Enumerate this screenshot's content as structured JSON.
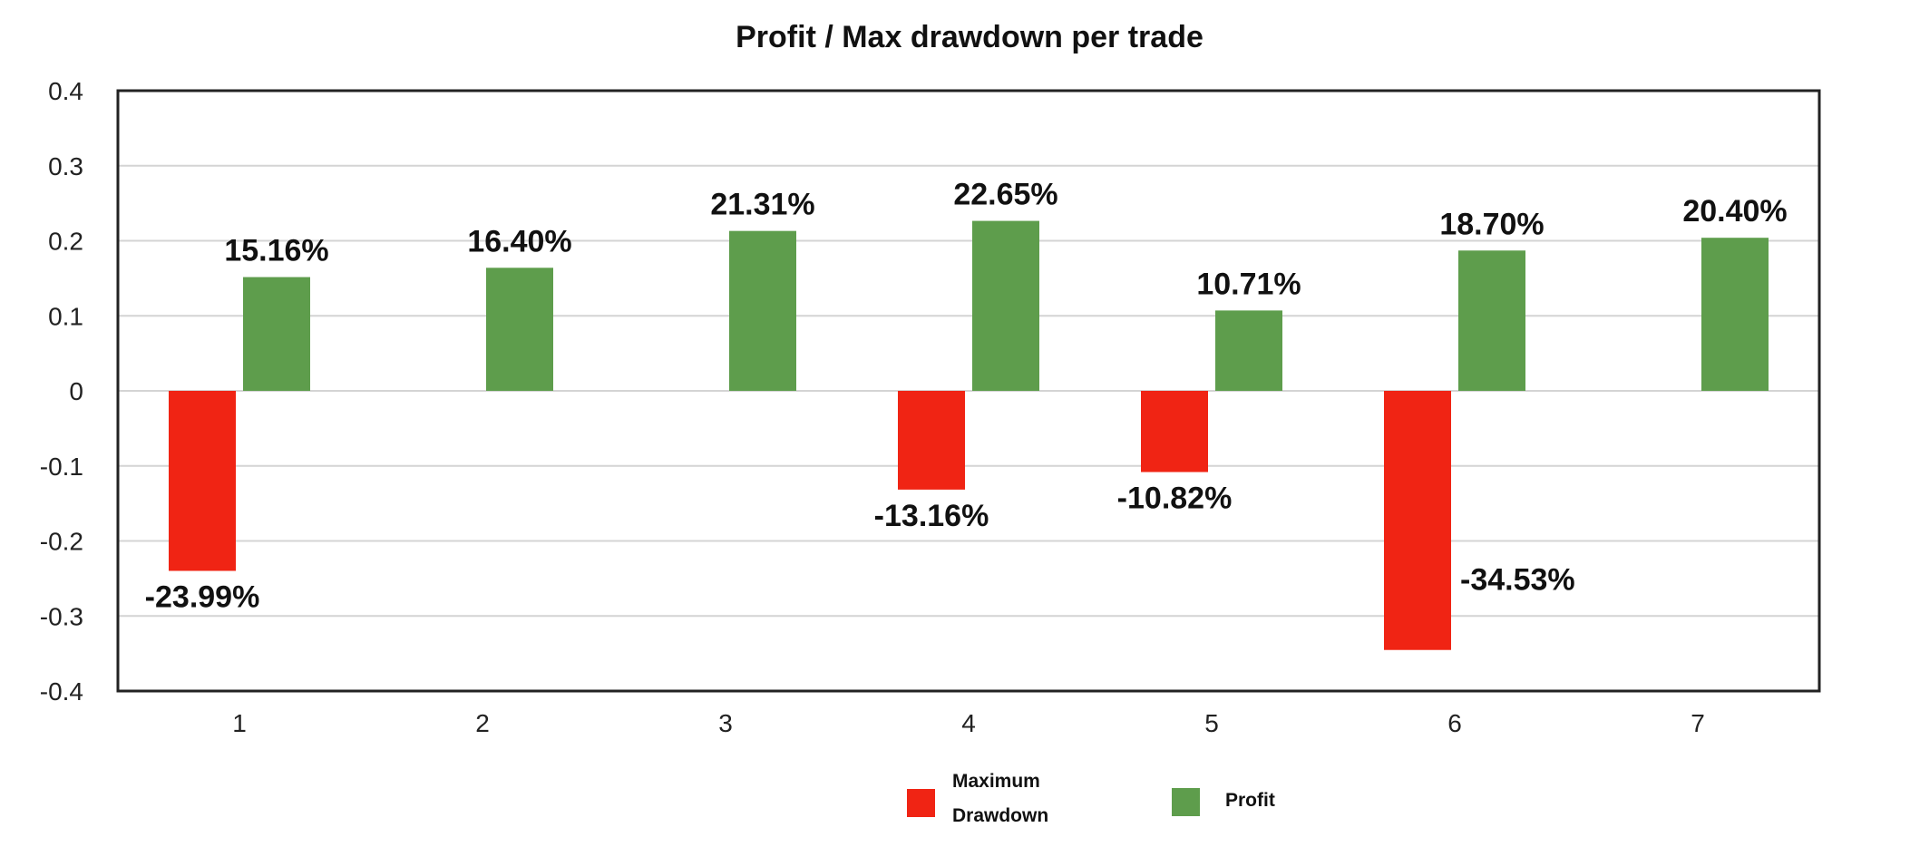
{
  "chart_data": {
    "type": "bar",
    "title": "Profit / Max drawdown per trade",
    "xlabel": "",
    "ylabel": "",
    "categories": [
      "1",
      "2",
      "3",
      "4",
      "5",
      "6",
      "7"
    ],
    "ylim": [
      -0.4,
      0.4
    ],
    "yticks": [
      0.4,
      0.3,
      0.2,
      0.1,
      0,
      -0.1,
      -0.2,
      -0.3,
      -0.4
    ],
    "ytick_labels": [
      "0.4",
      "0.3",
      "0.2",
      "0.1",
      "0",
      "-0.1",
      "-0.2",
      "-0.3",
      "-0.4"
    ],
    "grid": true,
    "legend_position": "bottom-center",
    "series": [
      {
        "name": "Maximum Drawdown",
        "legend_lines": [
          "Maximum",
          "Drawdown"
        ],
        "color": "#f02414",
        "values": [
          -0.2399,
          null,
          null,
          -0.1316,
          -0.1082,
          -0.3453,
          null
        ],
        "labels": [
          "-23.99%",
          null,
          null,
          "-13.16%",
          "-10.82%",
          "-34.53%",
          null
        ]
      },
      {
        "name": "Profit",
        "legend_lines": [
          "Profit"
        ],
        "color": "#5e9d4c",
        "values": [
          0.1516,
          0.164,
          0.2131,
          0.2265,
          0.1071,
          0.187,
          0.204
        ],
        "labels": [
          "15.16%",
          "16.40%",
          "21.31%",
          "22.65%",
          "10.71%",
          "18.70%",
          "20.40%"
        ]
      }
    ]
  }
}
